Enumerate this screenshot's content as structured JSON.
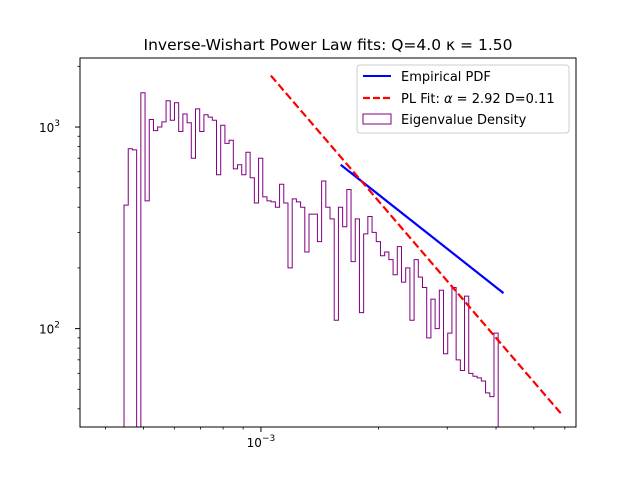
{
  "chart_data": {
    "type": "line",
    "title": "Inverse-Wishart Power Law fits: Q=4.0 κ = 1.50",
    "xlabel": "",
    "ylabel": "",
    "x_scale": "log",
    "y_scale": "log",
    "xlim": [
      0.000344,
      0.00641
    ],
    "ylim": [
      32.5,
      2200
    ],
    "x_ticks": [
      {
        "value": 0.001,
        "label": "10",
        "exp": "−3"
      }
    ],
    "y_ticks": [
      {
        "value": 100,
        "label": "10",
        "exp": "2"
      },
      {
        "value": 1000,
        "label": "10",
        "exp": "3"
      }
    ],
    "grid": false,
    "legend_position": "upper right",
    "series": [
      {
        "name": "Empirical PDF",
        "kind": "line",
        "color": "#0000ff",
        "style": "solid",
        "x": [
          0.0016,
          0.00418
        ],
        "y": [
          650,
          150
        ]
      },
      {
        "name": "PL Fit: α = 2.92 D=0.11",
        "legend_prefix": "PL Fit: ",
        "legend_symbol": "α",
        "legend_suffix": " = 2.92 D=0.11",
        "kind": "line",
        "color": "#ff0000",
        "style": "dashed",
        "x": [
          0.00106,
          0.00593
        ],
        "y": [
          1800,
          37
        ]
      },
      {
        "name": "Eigenvalue Density",
        "kind": "step-histogram",
        "color": "#800080",
        "bin_start": 0.000446,
        "bin_ratio": 1.0251,
        "values": [
          410,
          780,
          770,
          25,
          1480,
          430,
          1090,
          960,
          1000,
          1060,
          1350,
          1080,
          1320,
          950,
          1160,
          1050,
          700,
          1230,
          950,
          1150,
          1120,
          1080,
          580,
          1020,
          830,
          860,
          620,
          650,
          580,
          750,
          560,
          420,
          700,
          450,
          430,
          425,
          400,
          520,
          420,
          200,
          440,
          425,
          400,
          240,
          370,
          370,
          270,
          540,
          400,
          350,
          110,
          400,
          320,
          490,
          215,
          350,
          120,
          295,
          360,
          300,
          270,
          230,
          240,
          220,
          185,
          255,
          170,
          200,
          110,
          220,
          180,
          160,
          90,
          140,
          100,
          155,
          75,
          95,
          160,
          70,
          62,
          145,
          60,
          58,
          57,
          55,
          48,
          46,
          95
        ]
      }
    ]
  }
}
